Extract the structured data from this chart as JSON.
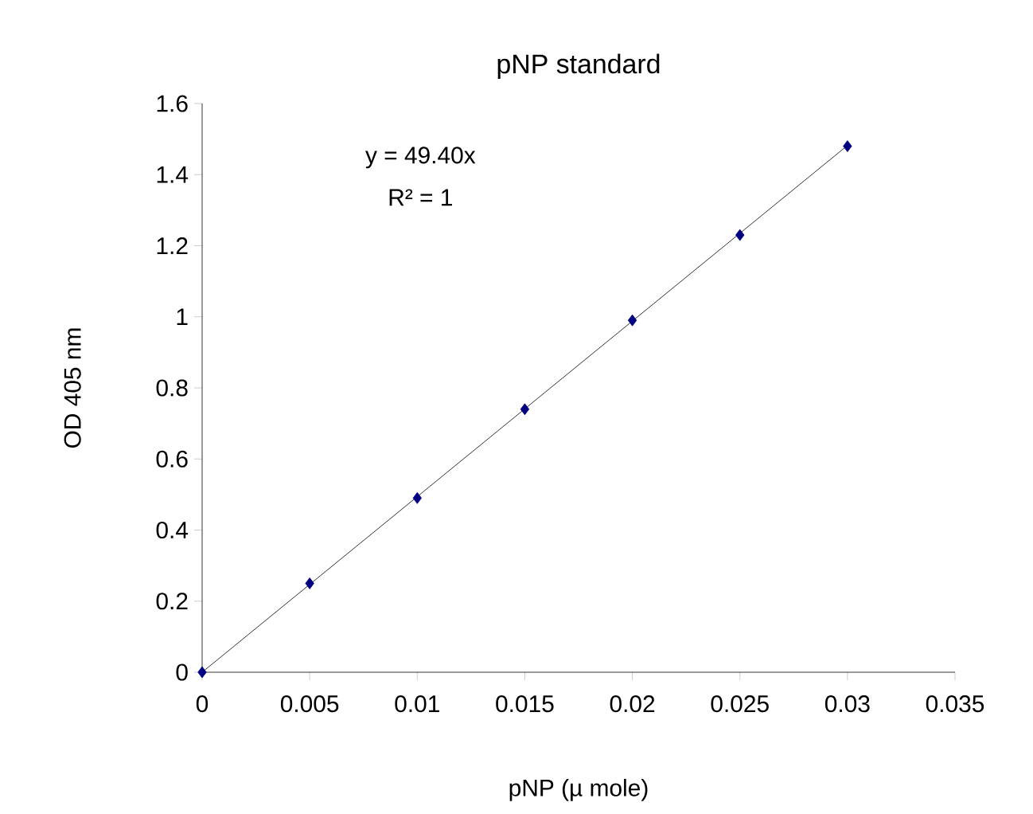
{
  "chart_data": {
    "type": "scatter",
    "title": "pNP standard",
    "xlabel": "pNP  (µ mole)",
    "ylabel": "OD 405 nm",
    "x": [
      0,
      0.005,
      0.01,
      0.015,
      0.02,
      0.025,
      0.03
    ],
    "series": [
      {
        "color": "#000080",
        "marker": "diamond",
        "values": [
          0,
          0.25,
          0.49,
          0.74,
          0.99,
          1.23,
          1.48
        ]
      },
      {
        "type": "line",
        "color": "#000000",
        "marker": "none",
        "x": [
          0,
          0.03
        ],
        "values": [
          0,
          1.482
        ]
      }
    ],
    "annotations": [
      "y = 49.40x",
      "R² = 1"
    ],
    "xlim": [
      0,
      0.035
    ],
    "ylim": [
      0,
      1.6
    ],
    "xticks": [
      0,
      0.005,
      0.01,
      0.015,
      0.02,
      0.025,
      0.03,
      0.035
    ],
    "yticks": [
      0,
      0.2,
      0.4,
      0.6,
      0.8,
      1,
      1.2,
      1.4,
      1.6
    ],
    "grid": false
  }
}
